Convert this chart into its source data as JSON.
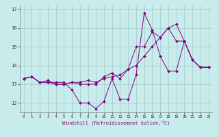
{
  "xlabel": "Windchill (Refroidissement éolien,°C)",
  "background_color": "#c8ecec",
  "line_color": "#800080",
  "grid_color": "#a0c8c8",
  "ylim": [
    11.5,
    17.2
  ],
  "xlim": [
    -0.5,
    23.5
  ],
  "yticks": [
    12,
    13,
    14,
    15,
    16,
    17
  ],
  "xticks": [
    0,
    1,
    2,
    3,
    4,
    5,
    6,
    7,
    8,
    9,
    10,
    11,
    12,
    13,
    14,
    15,
    16,
    17,
    18,
    19,
    20,
    21,
    22,
    23
  ],
  "series": [
    [
      13.3,
      13.4,
      13.1,
      13.1,
      13.1,
      13.1,
      12.7,
      12.0,
      12.0,
      11.7,
      12.1,
      13.3,
      12.2,
      12.2,
      13.5,
      16.8,
      15.9,
      14.5,
      13.7,
      13.7,
      15.3,
      14.3,
      13.9,
      13.9
    ],
    [
      13.3,
      13.4,
      13.1,
      13.1,
      13.0,
      13.0,
      13.1,
      13.0,
      13.0,
      13.0,
      13.4,
      13.6,
      13.3,
      13.8,
      15.0,
      15.0,
      15.8,
      15.5,
      16.0,
      15.3,
      15.3,
      14.3,
      13.9,
      13.9
    ],
    [
      13.3,
      13.4,
      13.1,
      13.2,
      13.0,
      13.0,
      13.1,
      13.1,
      13.2,
      13.1,
      13.3,
      13.4,
      13.5,
      13.8,
      14.0,
      14.5,
      15.0,
      15.5,
      16.0,
      16.2,
      15.3,
      14.3,
      13.9,
      13.9
    ]
  ]
}
